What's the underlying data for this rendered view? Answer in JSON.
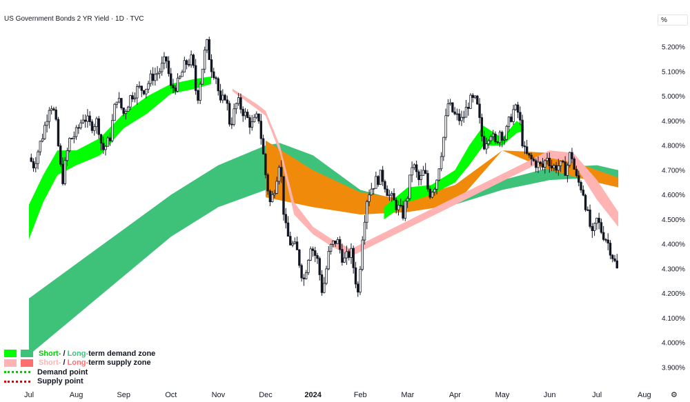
{
  "title": "US Government Bonds 2 YR Yield · 1D · TVC",
  "unit_label": "%",
  "settings_icon": "gear-icon",
  "colors": {
    "short_demand": "#00ff00",
    "long_demand": "#3ec27a",
    "short_supply": "#ffb3b3",
    "long_supply": "#ff6f6f",
    "overlap": "#f08a0a",
    "candle": "#131722"
  },
  "legend": {
    "row1": {
      "short": "Short-",
      "sep": " / ",
      "long": "Long-",
      "rest": "term demand zone"
    },
    "row2": {
      "short": "Short-",
      "sep": " / ",
      "long": "Long-",
      "rest": "term supply zone"
    },
    "row3": "Demand point",
    "row4": "Supply point"
  },
  "chart_data": {
    "type": "candlestick",
    "title": "US Government Bonds 2 YR Yield · 1D · TVC",
    "ylabel": "%",
    "ylim": [
      3.84,
      5.29
    ],
    "y_ticks": [
      "5.200%",
      "5.100%",
      "5.000%",
      "4.900%",
      "4.800%",
      "4.700%",
      "4.600%",
      "4.500%",
      "4.400%",
      "4.300%",
      "4.200%",
      "4.100%",
      "4.000%",
      "3.900%"
    ],
    "x_ticks": [
      "Jul",
      "Aug",
      "Sep",
      "Oct",
      "Nov",
      "Dec",
      "2024",
      "Feb",
      "Mar",
      "Apr",
      "May",
      "Jun",
      "Jul",
      "Aug"
    ],
    "x_tick_months": [
      0,
      1,
      2,
      3,
      4,
      5,
      6,
      7,
      8,
      9,
      10,
      11,
      12,
      13
    ],
    "close_path": [
      [
        0.0,
        4.75
      ],
      [
        0.1,
        4.72
      ],
      [
        0.3,
        4.85
      ],
      [
        0.45,
        4.98
      ],
      [
        0.55,
        4.92
      ],
      [
        0.7,
        4.65
      ],
      [
        0.85,
        4.82
      ],
      [
        1.0,
        4.85
      ],
      [
        1.15,
        4.92
      ],
      [
        1.3,
        4.88
      ],
      [
        1.45,
        4.9
      ],
      [
        1.55,
        4.78
      ],
      [
        1.7,
        4.82
      ],
      [
        1.85,
        5.0
      ],
      [
        2.0,
        4.93
      ],
      [
        2.15,
        5.0
      ],
      [
        2.3,
        5.03
      ],
      [
        2.45,
        5.03
      ],
      [
        2.6,
        5.08
      ],
      [
        2.75,
        5.1
      ],
      [
        2.9,
        5.15
      ],
      [
        3.0,
        5.03
      ],
      [
        3.15,
        5.05
      ],
      [
        3.3,
        5.13
      ],
      [
        3.45,
        5.15
      ],
      [
        3.55,
        4.98
      ],
      [
        3.65,
        5.1
      ],
      [
        3.75,
        5.22
      ],
      [
        3.85,
        5.12
      ],
      [
        3.95,
        5.08
      ],
      [
        4.05,
        4.96
      ],
      [
        4.15,
        5.01
      ],
      [
        4.25,
        4.88
      ],
      [
        4.4,
        4.98
      ],
      [
        4.55,
        4.93
      ],
      [
        4.7,
        4.88
      ],
      [
        4.85,
        4.92
      ],
      [
        5.0,
        4.68
      ],
      [
        5.1,
        4.56
      ],
      [
        5.2,
        4.64
      ],
      [
        5.3,
        4.75
      ],
      [
        5.4,
        4.48
      ],
      [
        5.5,
        4.41
      ],
      [
        5.65,
        4.38
      ],
      [
        5.8,
        4.25
      ],
      [
        5.95,
        4.4
      ],
      [
        6.1,
        4.33
      ],
      [
        6.2,
        4.2
      ],
      [
        6.35,
        4.38
      ],
      [
        6.5,
        4.42
      ],
      [
        6.65,
        4.33
      ],
      [
        6.8,
        4.37
      ],
      [
        6.95,
        4.2
      ],
      [
        7.05,
        4.45
      ],
      [
        7.15,
        4.6
      ],
      [
        7.3,
        4.65
      ],
      [
        7.45,
        4.68
      ],
      [
        7.6,
        4.6
      ],
      [
        7.75,
        4.56
      ],
      [
        7.9,
        4.52
      ],
      [
        8.0,
        4.6
      ],
      [
        8.1,
        4.73
      ],
      [
        8.25,
        4.65
      ],
      [
        8.35,
        4.7
      ],
      [
        8.45,
        4.6
      ],
      [
        8.6,
        4.65
      ],
      [
        8.75,
        4.82
      ],
      [
        8.85,
        4.97
      ],
      [
        9.0,
        4.92
      ],
      [
        9.15,
        4.9
      ],
      [
        9.3,
        4.98
      ],
      [
        9.45,
        4.98
      ],
      [
        9.6,
        4.8
      ],
      [
        9.75,
        4.86
      ],
      [
        9.85,
        4.8
      ],
      [
        9.95,
        4.86
      ],
      [
        10.05,
        4.83
      ],
      [
        10.15,
        4.9
      ],
      [
        10.25,
        4.95
      ],
      [
        10.35,
        4.93
      ],
      [
        10.45,
        4.78
      ],
      [
        10.55,
        4.75
      ],
      [
        10.7,
        4.73
      ],
      [
        10.85,
        4.71
      ],
      [
        10.95,
        4.76
      ],
      [
        11.05,
        4.71
      ],
      [
        11.2,
        4.72
      ],
      [
        11.35,
        4.7
      ],
      [
        11.45,
        4.78
      ],
      [
        11.55,
        4.67
      ],
      [
        11.7,
        4.62
      ],
      [
        11.8,
        4.52
      ],
      [
        11.9,
        4.43
      ],
      [
        12.0,
        4.5
      ],
      [
        12.1,
        4.45
      ],
      [
        12.2,
        4.42
      ],
      [
        12.3,
        4.37
      ],
      [
        12.45,
        4.28
      ]
    ],
    "zones": {
      "long_demand_top": [
        [
          0.0,
          4.18
        ],
        [
          1.0,
          4.32
        ],
        [
          2.0,
          4.46
        ],
        [
          3.0,
          4.6
        ],
        [
          4.0,
          4.72
        ],
        [
          5.0,
          4.8
        ],
        [
          5.3,
          4.81
        ],
        [
          6.0,
          4.76
        ],
        [
          7.0,
          4.62
        ],
        [
          8.0,
          4.57
        ],
        [
          9.0,
          4.59
        ],
        [
          10.0,
          4.66
        ],
        [
          11.0,
          4.71
        ],
        [
          12.0,
          4.72
        ],
        [
          12.45,
          4.7
        ]
      ],
      "long_demand_bottom": [
        [
          0.0,
          3.95
        ],
        [
          1.0,
          4.11
        ],
        [
          2.0,
          4.27
        ],
        [
          3.0,
          4.43
        ],
        [
          4.0,
          4.55
        ],
        [
          5.0,
          4.62
        ],
        [
          6.0,
          4.61
        ],
        [
          7.0,
          4.57
        ],
        [
          8.0,
          4.54
        ],
        [
          9.0,
          4.56
        ],
        [
          10.0,
          4.62
        ],
        [
          11.0,
          4.66
        ],
        [
          12.0,
          4.67
        ],
        [
          12.45,
          4.66
        ]
      ],
      "short_demand_top": [
        [
          0.0,
          4.56
        ],
        [
          0.3,
          4.68
        ],
        [
          0.6,
          4.78
        ],
        [
          1.0,
          4.78
        ],
        [
          1.5,
          4.83
        ],
        [
          2.0,
          4.93
        ],
        [
          2.5,
          5.0
        ],
        [
          3.0,
          5.05
        ],
        [
          3.5,
          5.07
        ],
        [
          3.85,
          5.08
        ]
      ],
      "short_demand_bottom": [
        [
          0.0,
          4.42
        ],
        [
          0.3,
          4.57
        ],
        [
          0.6,
          4.68
        ],
        [
          1.0,
          4.72
        ],
        [
          1.5,
          4.76
        ],
        [
          2.0,
          4.87
        ],
        [
          2.5,
          4.93
        ],
        [
          3.0,
          5.01
        ],
        [
          3.5,
          5.03
        ],
        [
          3.85,
          5.05
        ]
      ],
      "short_demand2_top": [
        [
          7.5,
          4.55
        ],
        [
          8.0,
          4.63
        ],
        [
          8.5,
          4.64
        ],
        [
          9.0,
          4.7
        ],
        [
          9.3,
          4.8
        ],
        [
          9.6,
          4.88
        ],
        [
          10.0,
          4.83
        ],
        [
          10.3,
          4.9
        ],
        [
          10.45,
          4.88
        ]
      ],
      "short_demand2_bottom": [
        [
          7.5,
          4.5
        ],
        [
          8.0,
          4.57
        ],
        [
          8.5,
          4.6
        ],
        [
          9.0,
          4.65
        ],
        [
          9.3,
          4.72
        ],
        [
          9.6,
          4.8
        ],
        [
          10.0,
          4.8
        ],
        [
          10.3,
          4.85
        ],
        [
          10.45,
          4.86
        ]
      ],
      "long_supply_top": [
        [
          5.0,
          4.82
        ],
        [
          6.0,
          4.7
        ],
        [
          7.0,
          4.61
        ],
        [
          8.0,
          4.58
        ],
        [
          9.0,
          4.64
        ],
        [
          10.0,
          4.78
        ],
        [
          11.0,
          4.77
        ],
        [
          12.0,
          4.7
        ],
        [
          12.45,
          4.67
        ]
      ],
      "long_supply_bottom": [
        [
          5.0,
          4.59
        ],
        [
          6.0,
          4.55
        ],
        [
          7.0,
          4.52
        ],
        [
          8.0,
          4.53
        ],
        [
          9.0,
          4.56
        ],
        [
          10.0,
          4.78
        ],
        [
          11.0,
          4.7
        ],
        [
          12.0,
          4.65
        ],
        [
          12.45,
          4.63
        ]
      ],
      "short_supply_top": [
        [
          4.3,
          5.03
        ],
        [
          4.8,
          4.97
        ],
        [
          5.0,
          4.94
        ],
        [
          5.3,
          4.8
        ],
        [
          5.6,
          4.57
        ],
        [
          6.0,
          4.47
        ],
        [
          6.4,
          4.42
        ],
        [
          6.8,
          4.38
        ],
        [
          11.0,
          4.78
        ],
        [
          11.5,
          4.77
        ],
        [
          12.0,
          4.66
        ],
        [
          12.45,
          4.53
        ]
      ],
      "short_supply_bottom": [
        [
          4.3,
          5.02
        ],
        [
          4.8,
          4.95
        ],
        [
          5.0,
          4.92
        ],
        [
          5.3,
          4.77
        ],
        [
          5.6,
          4.52
        ],
        [
          6.0,
          4.44
        ],
        [
          6.4,
          4.39
        ],
        [
          6.8,
          4.35
        ],
        [
          11.0,
          4.75
        ],
        [
          11.5,
          4.73
        ],
        [
          12.0,
          4.58
        ],
        [
          12.45,
          4.47
        ]
      ]
    }
  }
}
